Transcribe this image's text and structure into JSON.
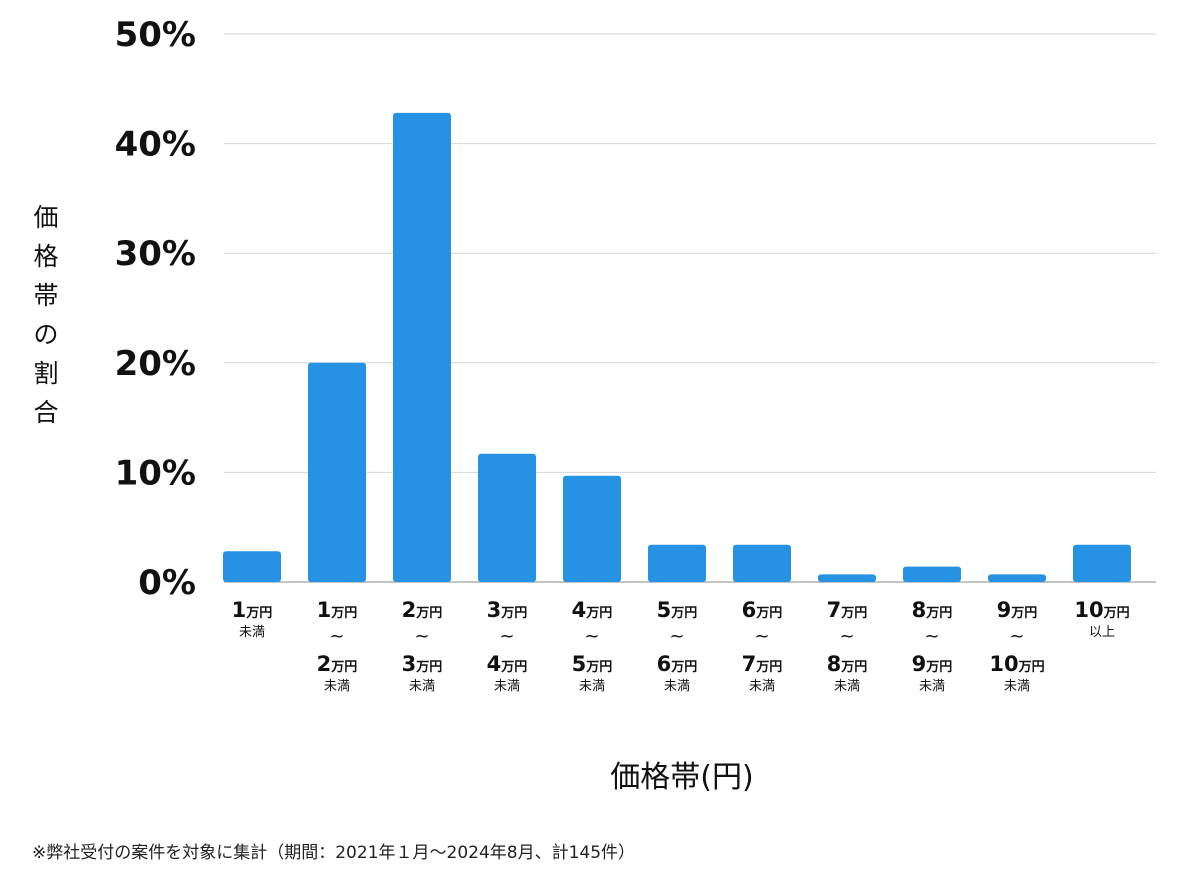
{
  "chart_data": {
    "type": "bar",
    "ylabel": "価格帯の割合",
    "xlabel": "価格帯(円)",
    "ylim": [
      0,
      50
    ],
    "yticks": [
      "0%",
      "10%",
      "20%",
      "30%",
      "40%",
      "50%"
    ],
    "grid": true,
    "bar_color": "#2592e4",
    "categories": [
      {
        "top": "1",
        "top_unit": "万円",
        "bottom": "",
        "bottom_unit": "",
        "note": "未満"
      },
      {
        "top": "1",
        "top_unit": "万円",
        "bottom": "2",
        "bottom_unit": "万円",
        "note": "未満"
      },
      {
        "top": "2",
        "top_unit": "万円",
        "bottom": "3",
        "bottom_unit": "万円",
        "note": "未満"
      },
      {
        "top": "3",
        "top_unit": "万円",
        "bottom": "4",
        "bottom_unit": "万円",
        "note": "未満"
      },
      {
        "top": "4",
        "top_unit": "万円",
        "bottom": "5",
        "bottom_unit": "万円",
        "note": "未満"
      },
      {
        "top": "5",
        "top_unit": "万円",
        "bottom": "6",
        "bottom_unit": "万円",
        "note": "未満"
      },
      {
        "top": "6",
        "top_unit": "万円",
        "bottom": "7",
        "bottom_unit": "万円",
        "note": "未満"
      },
      {
        "top": "7",
        "top_unit": "万円",
        "bottom": "8",
        "bottom_unit": "万円",
        "note": "未満"
      },
      {
        "top": "8",
        "top_unit": "万円",
        "bottom": "9",
        "bottom_unit": "万円",
        "note": "未満"
      },
      {
        "top": "9",
        "top_unit": "万円",
        "bottom": "10",
        "bottom_unit": "万円",
        "note": "未満"
      },
      {
        "top": "10",
        "top_unit": "万円",
        "bottom": "",
        "bottom_unit": "",
        "note": "以上"
      }
    ],
    "range_mark": "~",
    "values": [
      2.8,
      20.0,
      42.8,
      11.7,
      9.7,
      3.4,
      3.4,
      0.7,
      1.4,
      0.7,
      3.4
    ]
  },
  "footnote": "※弊社受付の案件を対象に集計（期間：2021年１月〜2024年8月、計145件）"
}
